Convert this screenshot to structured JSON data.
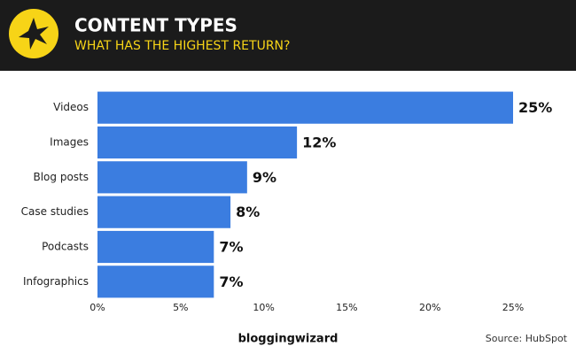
{
  "chart_data": {
    "type": "bar",
    "orientation": "horizontal",
    "title": "CONTENT TYPES",
    "subtitle": "WHAT HAS THE HIGHEST RETURN?",
    "categories": [
      "Videos",
      "Images",
      "Blog posts",
      "Case studies",
      "Podcasts",
      "Infographics"
    ],
    "values": [
      25,
      12,
      9,
      8,
      7,
      7
    ],
    "value_labels": [
      "25%",
      "12%",
      "9%",
      "8%",
      "7%",
      "7%"
    ],
    "color": "#3b7de0",
    "xlim": [
      0,
      25
    ],
    "xticks": [
      {
        "value": 0,
        "label": "0%"
      },
      {
        "value": 5,
        "label": "5%"
      },
      {
        "value": 10,
        "label": "10%"
      },
      {
        "value": 15,
        "label": "15%"
      },
      {
        "value": 20,
        "label": "20%"
      },
      {
        "value": 25,
        "label": "25%"
      }
    ],
    "grid": false,
    "logo": "bloggingwizard",
    "source": "Source: HubSpot"
  }
}
